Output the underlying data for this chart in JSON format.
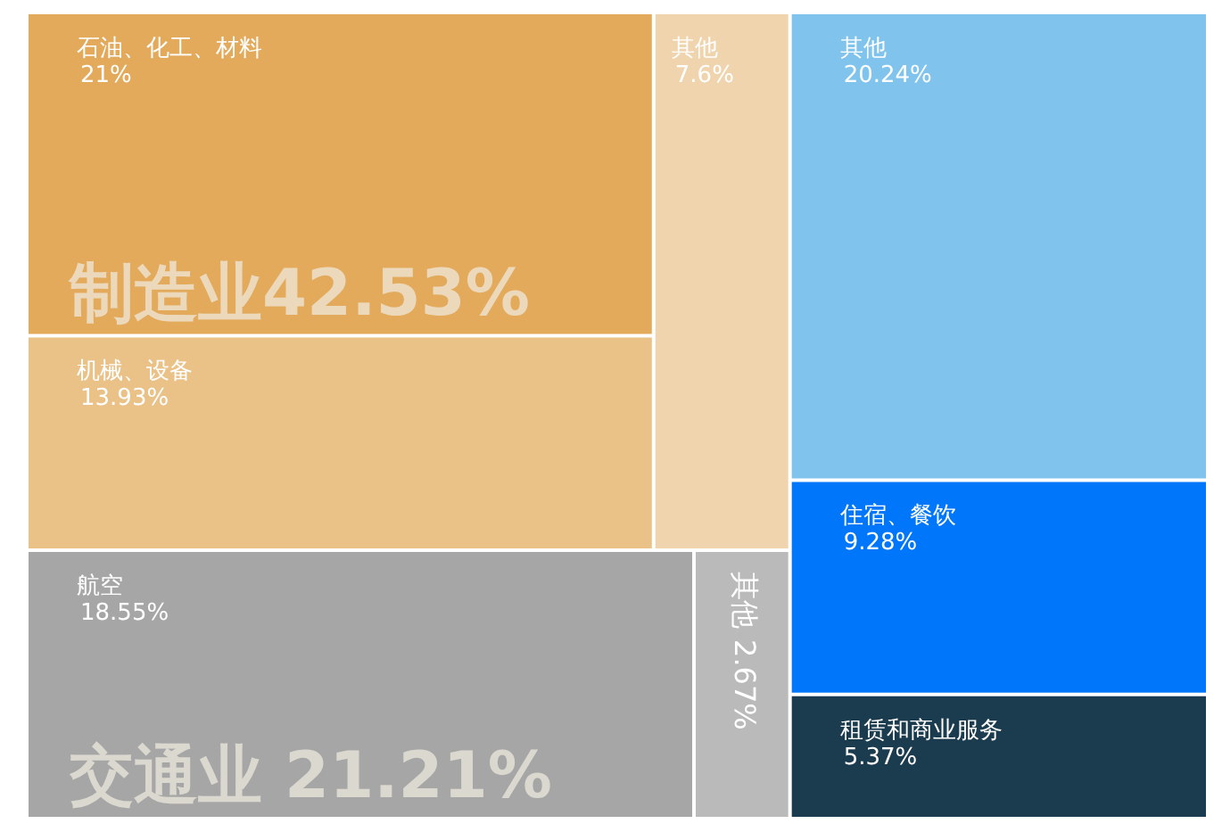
{
  "chart_data": {
    "type": "other",
    "categories": [
      "石油、化工、材料",
      "机械、设备",
      "其他",
      "航空",
      "其他",
      "其他",
      "住宿、餐饮",
      "租赁和商业服务"
    ],
    "values": [
      21,
      13.93,
      7.6,
      18.55,
      2.67,
      20.24,
      9.28,
      5.37
    ],
    "value_labels": [
      "21%",
      "13.93%",
      "7.6%",
      "18.55%",
      "2.67%",
      "20.24%",
      "9.28%",
      "5.37%"
    ],
    "colors": [
      "#e3aa5c",
      "#eac187",
      "#f0d4ad",
      "#a6a6a6",
      "#bababa",
      "#80c4ee",
      "#0077fa",
      "#1b3b4e"
    ],
    "annotations": [
      "制造业42.53%",
      "交通业 21.21%"
    ]
  }
}
